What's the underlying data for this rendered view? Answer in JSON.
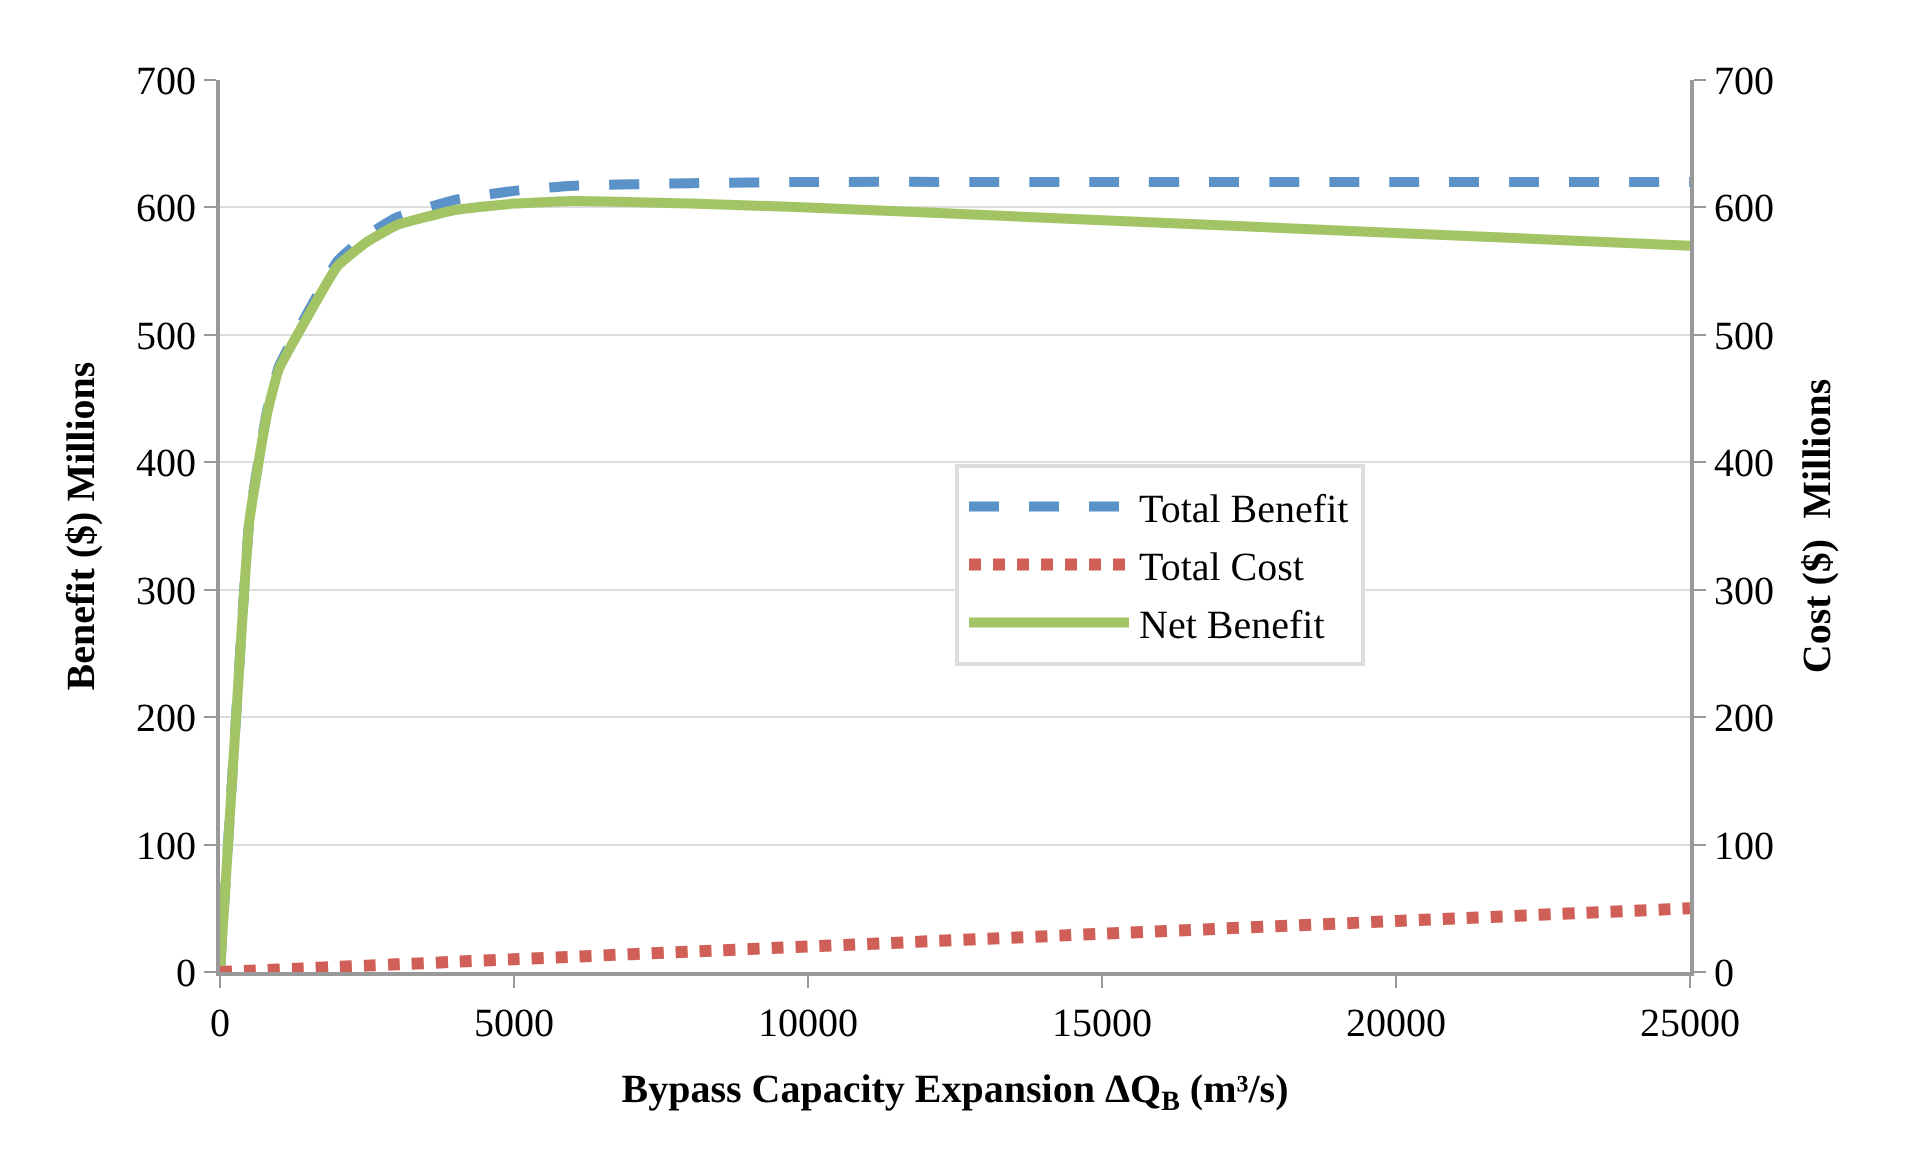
{
  "chart_data": {
    "type": "line",
    "xlabel": "Bypass Capacity Expansion ΔQ$_{B}$ (m³/s)",
    "ylabel": "Benefit ($) Millions",
    "y2label": "Cost ($)  Millions",
    "x": [
      0,
      300,
      500,
      800,
      1000,
      1400,
      2000,
      2500,
      3000,
      4000,
      5000,
      6000,
      8000,
      10000,
      15000,
      20000,
      25000
    ],
    "series": [
      {
        "name": "Total Benefit",
        "color": "#5b93c9",
        "line_style": "dashed",
        "values": [
          0,
          220,
          355,
          440,
          475,
          510,
          558,
          578,
          592,
          606,
          613,
          617,
          619,
          620,
          620,
          620,
          620
        ]
      },
      {
        "name": "Total Cost",
        "color": "#cf5f57",
        "line_style": "dotted",
        "axis": "y2",
        "values": [
          0,
          0.6,
          1,
          1.6,
          2,
          2.8,
          4,
          5,
          6,
          8,
          10,
          12,
          16,
          20,
          30,
          40,
          50
        ]
      },
      {
        "name": "Net Benefit",
        "color": "#a3c465",
        "line_style": "solid",
        "values": [
          0,
          219,
          354,
          438,
          473,
          507,
          554,
          573,
          586,
          598,
          603,
          605,
          603,
          600,
          590,
          580,
          570
        ]
      }
    ],
    "xlim": [
      0,
      25000
    ],
    "xticks": [
      0,
      5000,
      10000,
      15000,
      20000,
      25000
    ],
    "ylim": [
      0,
      700
    ],
    "yticks": [
      0,
      100,
      200,
      300,
      400,
      500,
      600,
      700
    ],
    "y2lim": [
      0,
      700
    ],
    "y2ticks": [
      0,
      100,
      200,
      300,
      400,
      500,
      600,
      700
    ],
    "grid": "y",
    "legend": "right",
    "marker": "none"
  }
}
